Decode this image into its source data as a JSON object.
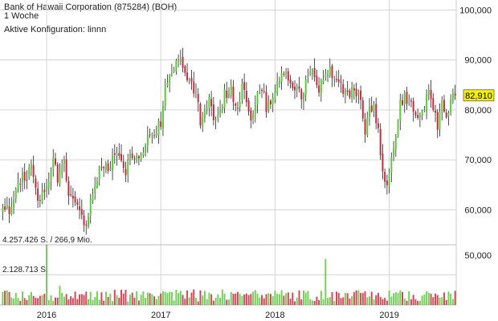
{
  "header": {
    "title": "Bank of Hawaii Corporation (875284) (BOH)",
    "interval": "1 Woche",
    "config": "Aktive Konfiguration: linnn"
  },
  "chart_data": {
    "type": "candlestick",
    "price_axis": {
      "ticks": [
        "100,000",
        "90,000",
        "80,000",
        "70,000",
        "60,000"
      ],
      "tick_values": [
        100,
        90,
        80,
        70,
        60
      ],
      "ylim": [
        53,
        102
      ]
    },
    "volume_axis": {
      "tick_label": "50,000",
      "max_label": "4.257.426 S. / 266,9 Mio.",
      "mid_label": "2.128.713 S.",
      "max": 4257426,
      "mid": 2128713
    },
    "x_ticks": [
      "2016",
      "2017",
      "2018",
      "2019"
    ],
    "x_tick_weeks": [
      20,
      72,
      124,
      176
    ],
    "last_value": "82,910",
    "last": 82.91,
    "colors": {
      "up": "#5cc63c",
      "down": "#c9283a",
      "grid": "#d4d4d4",
      "last_box": "#f5f000"
    },
    "anchors": [
      [
        0,
        61
      ],
      [
        3,
        59.5
      ],
      [
        6,
        63
      ],
      [
        9,
        68
      ],
      [
        11,
        66
      ],
      [
        13,
        69
      ],
      [
        16,
        62
      ],
      [
        18,
        64
      ],
      [
        21,
        65
      ],
      [
        23,
        70
      ],
      [
        25,
        66
      ],
      [
        28,
        69
      ],
      [
        30,
        64
      ],
      [
        33,
        62
      ],
      [
        36,
        58
      ],
      [
        38,
        56
      ],
      [
        40,
        62
      ],
      [
        43,
        66
      ],
      [
        45,
        69
      ],
      [
        48,
        68
      ],
      [
        51,
        72
      ],
      [
        53,
        70
      ],
      [
        56,
        67
      ],
      [
        58,
        72
      ],
      [
        60,
        70
      ],
      [
        63,
        71
      ],
      [
        66,
        74
      ],
      [
        69,
        76
      ],
      [
        72,
        77
      ],
      [
        74,
        84
      ],
      [
        77,
        88
      ],
      [
        80,
        90
      ],
      [
        83,
        88
      ],
      [
        85,
        86
      ],
      [
        88,
        83
      ],
      [
        90,
        78
      ],
      [
        92,
        80
      ],
      [
        94,
        82
      ],
      [
        96,
        78
      ],
      [
        98,
        79
      ],
      [
        101,
        83
      ],
      [
        104,
        84
      ],
      [
        107,
        80
      ],
      [
        109,
        84
      ],
      [
        111,
        82
      ],
      [
        113,
        79
      ],
      [
        116,
        83
      ],
      [
        118,
        85
      ],
      [
        120,
        80
      ],
      [
        123,
        83
      ],
      [
        125,
        86
      ],
      [
        128,
        88
      ],
      [
        131,
        86
      ],
      [
        133,
        84
      ],
      [
        136,
        83
      ],
      [
        139,
        86
      ],
      [
        141,
        87
      ],
      [
        144,
        84
      ],
      [
        146,
        86
      ],
      [
        149,
        88
      ],
      [
        151,
        86
      ],
      [
        154,
        85
      ],
      [
        157,
        83
      ],
      [
        160,
        84
      ],
      [
        163,
        82
      ],
      [
        165,
        76
      ],
      [
        167,
        80
      ],
      [
        169,
        81
      ],
      [
        171,
        76
      ],
      [
        173,
        67
      ],
      [
        175,
        65
      ],
      [
        177,
        70
      ],
      [
        179,
        75
      ],
      [
        181,
        81
      ],
      [
        183,
        83
      ],
      [
        186,
        81
      ],
      [
        188,
        79
      ],
      [
        190,
        78
      ],
      [
        192,
        81
      ],
      [
        194,
        84
      ],
      [
        196,
        80
      ],
      [
        198,
        77
      ],
      [
        200,
        81
      ],
      [
        202,
        79
      ],
      [
        204,
        82
      ],
      [
        206,
        82.91
      ]
    ],
    "volume_spikes": [
      [
        20,
        4257426
      ],
      [
        26,
        1350000
      ],
      [
        147,
        3250000
      ]
    ],
    "volume_base_range": [
      250000,
      1100000
    ]
  }
}
